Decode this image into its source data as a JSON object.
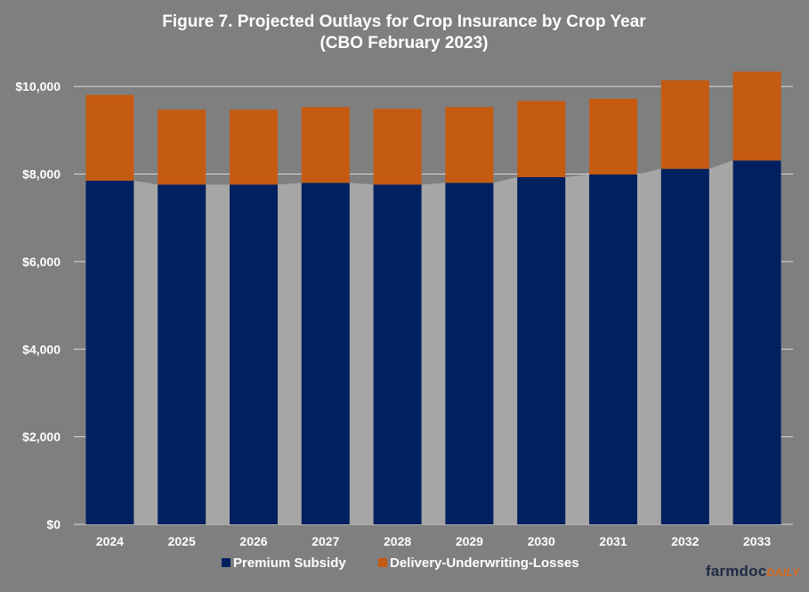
{
  "chart_data": {
    "type": "bar",
    "stacked": true,
    "title": "Figure 7. Projected Outlays for Crop Insurance by Crop Year",
    "subtitle": "(CBO February  2023)",
    "xlabel": "",
    "ylabel": "",
    "categories": [
      "2024",
      "2025",
      "2026",
      "2027",
      "2028",
      "2029",
      "2030",
      "2031",
      "2032",
      "2033"
    ],
    "series": [
      {
        "name": "Premium Subsidy",
        "color": "#002060",
        "values": [
          7850,
          7760,
          7760,
          7800,
          7760,
          7800,
          7930,
          7990,
          8120,
          8310
        ]
      },
      {
        "name": "Delivery-Underwriting-Losses",
        "color": "#c55a11",
        "values": [
          1960,
          1710,
          1710,
          1730,
          1730,
          1730,
          1740,
          1730,
          2020,
          2030
        ]
      }
    ],
    "ylim": [
      0,
      11000
    ],
    "yticks": [
      0,
      2000,
      4000,
      6000,
      8000,
      10000
    ],
    "ytick_labels": [
      "$0",
      "$2,000",
      "$4,000",
      "$6,000",
      "$8,000",
      "$10,000"
    ],
    "grid": true,
    "legend_position": "bottom"
  },
  "logo": {
    "main": "farmdoc",
    "accent": "DAILY"
  }
}
